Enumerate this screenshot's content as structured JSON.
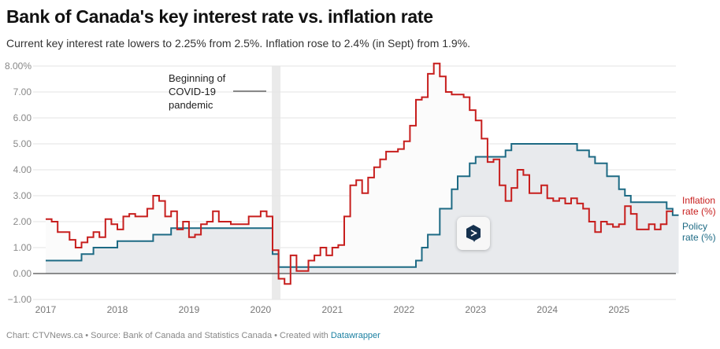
{
  "header": {
    "title": "Bank of Canada's key interest rate vs. inflation rate",
    "subtitle": "Current key interest rate lowers to 2.25% from 2.5%. Inflation rose to 2.4% (in Sept) from 1.9%."
  },
  "footer": {
    "prefix": "Chart: CTVNews.ca • Source: Bank of Canada and Statistics Canada • Created with ",
    "link": "Datawrapper"
  },
  "datawrapper_button": {
    "icon": "datawrapper-logo-icon"
  },
  "chart_data": {
    "type": "line",
    "title": "Bank of Canada's key interest rate vs. inflation rate",
    "xlabel": "",
    "ylabel": "",
    "x_start": "2017-01",
    "x_step": "month",
    "xlim": [
      "2017-01",
      "2025-11"
    ],
    "ylim": [
      -1,
      8
    ],
    "yticks": [
      -1,
      0,
      1,
      2,
      3,
      4,
      5,
      6,
      7,
      8
    ],
    "ytick_labels": [
      "−1.00",
      "0.00",
      "1.00",
      "2.00",
      "3.00",
      "4.00",
      "5.00",
      "6.00",
      "7.00",
      "8.00%"
    ],
    "xtick_labels": [
      "2017",
      "2018",
      "2019",
      "2020",
      "2021",
      "2022",
      "2023",
      "2024",
      "2025"
    ],
    "grid": true,
    "step": true,
    "series": [
      {
        "name": "Inflation rate (%)",
        "label_lines": [
          "Inflation",
          "rate (%)"
        ],
        "color": "#c71e1d",
        "values": [
          2.1,
          2.0,
          1.6,
          1.6,
          1.3,
          1.0,
          1.2,
          1.4,
          1.6,
          1.4,
          2.1,
          1.9,
          1.7,
          2.2,
          2.3,
          2.2,
          2.2,
          2.5,
          3.0,
          2.8,
          2.2,
          2.4,
          1.7,
          2.0,
          1.4,
          1.5,
          1.9,
          2.0,
          2.4,
          2.0,
          2.0,
          1.9,
          1.9,
          1.9,
          2.2,
          2.2,
          2.4,
          2.2,
          0.9,
          -0.2,
          -0.4,
          0.7,
          0.1,
          0.1,
          0.5,
          0.7,
          1.0,
          0.7,
          1.0,
          1.1,
          2.2,
          3.4,
          3.6,
          3.1,
          3.7,
          4.1,
          4.4,
          4.7,
          4.7,
          4.8,
          5.1,
          5.7,
          6.7,
          6.8,
          7.7,
          8.1,
          7.6,
          7.0,
          6.9,
          6.9,
          6.8,
          6.3,
          5.9,
          5.2,
          4.3,
          4.4,
          3.4,
          2.8,
          3.3,
          4.0,
          3.8,
          3.1,
          3.1,
          3.4,
          2.9,
          2.8,
          2.9,
          2.7,
          2.9,
          2.7,
          2.5,
          2.0,
          1.6,
          2.0,
          1.9,
          1.8,
          1.9,
          2.6,
          2.3,
          1.7,
          1.7,
          1.9,
          1.7,
          1.9,
          2.4
        ],
        "last_value": 2.4
      },
      {
        "name": "Policy rate (%)",
        "label_lines": [
          "Policy",
          "rate (%)"
        ],
        "color": "#1d6a84",
        "values": [
          0.5,
          0.5,
          0.5,
          0.5,
          0.5,
          0.5,
          0.75,
          0.75,
          1.0,
          1.0,
          1.0,
          1.0,
          1.25,
          1.25,
          1.25,
          1.25,
          1.25,
          1.25,
          1.5,
          1.5,
          1.5,
          1.75,
          1.75,
          1.75,
          1.75,
          1.75,
          1.75,
          1.75,
          1.75,
          1.75,
          1.75,
          1.75,
          1.75,
          1.75,
          1.75,
          1.75,
          1.75,
          1.75,
          0.75,
          0.25,
          0.25,
          0.25,
          0.25,
          0.25,
          0.25,
          0.25,
          0.25,
          0.25,
          0.25,
          0.25,
          0.25,
          0.25,
          0.25,
          0.25,
          0.25,
          0.25,
          0.25,
          0.25,
          0.25,
          0.25,
          0.25,
          0.25,
          0.5,
          1.0,
          1.5,
          1.5,
          2.5,
          2.5,
          3.25,
          3.75,
          3.75,
          4.25,
          4.5,
          4.5,
          4.5,
          4.5,
          4.5,
          4.75,
          5.0,
          5.0,
          5.0,
          5.0,
          5.0,
          5.0,
          5.0,
          5.0,
          5.0,
          5.0,
          5.0,
          4.75,
          4.75,
          4.5,
          4.25,
          4.25,
          3.75,
          3.75,
          3.25,
          3.0,
          2.75,
          2.75,
          2.75,
          2.75,
          2.75,
          2.75,
          2.5,
          2.25
        ],
        "last_value": 2.25
      }
    ],
    "annotations": [
      {
        "text_lines": [
          "Beginning of",
          "COVID-19",
          "pandemic"
        ],
        "range": [
          "2020-03",
          "2020-04"
        ]
      }
    ],
    "area_fill": {
      "inflation": "#fbfbfb",
      "policy": "#e8eaed"
    }
  }
}
